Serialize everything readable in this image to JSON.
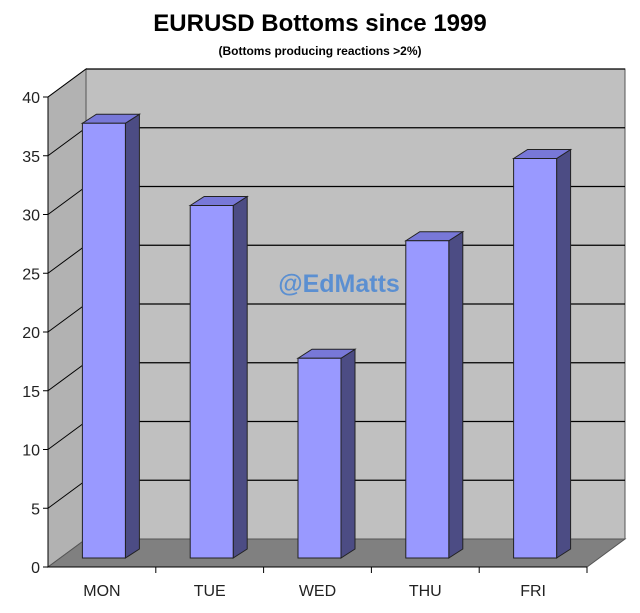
{
  "title": "EURUSD Bottoms since 1999",
  "subtitle": "(Bottoms producing reactions >2%)",
  "watermark": "@EdMatts",
  "chart_data": {
    "type": "bar",
    "title": "EURUSD Bottoms since 1999",
    "subtitle": "(Bottoms producing reactions >2%)",
    "categories": [
      "MON",
      "TUE",
      "WED",
      "THU",
      "FRI"
    ],
    "values": [
      37,
      30,
      17,
      27,
      34
    ],
    "ylim": [
      0,
      40
    ],
    "yticks": [
      "0",
      "5",
      "10",
      "15",
      "20",
      "25",
      "30",
      "35",
      "40"
    ],
    "xlabel": "",
    "ylabel": "",
    "grid": true,
    "style": "3d",
    "colors": {
      "bar_front": "#9999ff",
      "bar_side": "#4c4c84",
      "bar_top": "#7878d8",
      "back_wall": "#c0c0c0",
      "side_wall": "#b2b2b2",
      "floor": "#808080"
    }
  }
}
